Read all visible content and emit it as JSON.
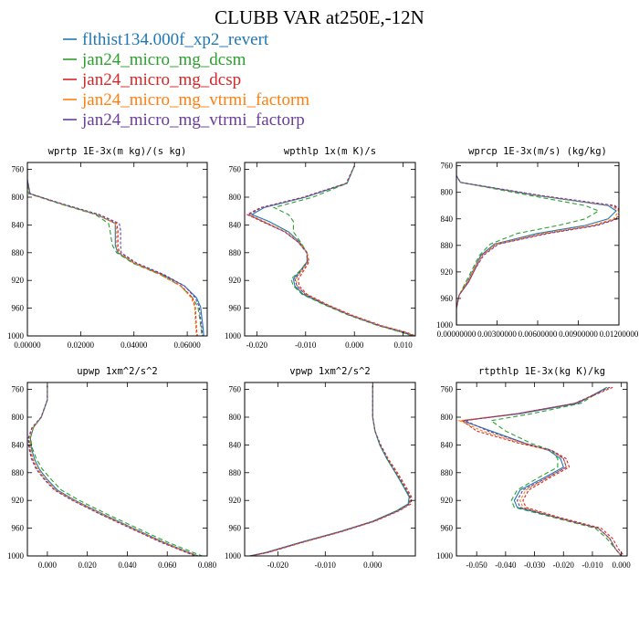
{
  "figure": {
    "title": "CLUBB VAR at250E,-12N"
  },
  "legend": [
    {
      "name": "flthist134.000f_xp2_revert",
      "color": "#1f77b4",
      "dash": ""
    },
    {
      "name": "jan24_micro_mg_dcsm",
      "color": "#2ca02c",
      "dash": "5,3"
    },
    {
      "name": "jan24_micro_mg_dcsp",
      "color": "#d62728",
      "dash": "3,2"
    },
    {
      "name": "jan24_micro_mg_vtrmi_factorm",
      "color": "#ff7f0e",
      "dash": "3,2"
    },
    {
      "name": "jan24_micro_mg_vtrmi_factorp",
      "color": "#6a3d9a",
      "dash": "3,2"
    }
  ],
  "chart_data": [
    {
      "type": "line",
      "title": "wprtp  1E-3x(m kg)/(s kg)",
      "xlim": [
        0.0,
        0.0675
      ],
      "xticks": [
        0.0,
        0.02,
        0.04,
        0.06
      ],
      "xtick_labels": [
        "0.00000",
        "0.02000",
        "0.04000",
        "0.06000"
      ],
      "ylim": [
        1000,
        750
      ],
      "yticks": [
        760,
        800,
        840,
        880,
        920,
        960,
        1000
      ],
      "y": [
        760,
        775,
        795,
        810,
        825,
        838,
        848,
        860,
        870,
        880,
        895,
        912,
        928,
        945,
        958,
        975,
        990,
        1000
      ],
      "series": [
        {
          "values": [
            0.0,
            0.0,
            0.001,
            0.013,
            0.026,
            0.033,
            0.033,
            0.033,
            0.033,
            0.034,
            0.04,
            0.051,
            0.059,
            0.0635,
            0.065,
            0.0655,
            0.066,
            0.0662
          ]
        },
        {
          "values": [
            0.0,
            0.0,
            0.0005,
            0.0125,
            0.0255,
            0.0305,
            0.031,
            0.0315,
            0.032,
            0.0335,
            0.0395,
            0.05,
            0.0575,
            0.062,
            0.064,
            0.0647,
            0.0652,
            0.0655
          ]
        },
        {
          "values": [
            0.0,
            0.0,
            0.001,
            0.0133,
            0.0265,
            0.0335,
            0.034,
            0.034,
            0.034,
            0.0345,
            0.0405,
            0.0505,
            0.0578,
            0.062,
            0.063,
            0.0633,
            0.0635,
            0.0638
          ]
        },
        {
          "values": [
            0.0,
            0.0,
            0.0008,
            0.013,
            0.0262,
            0.033,
            0.0335,
            0.0335,
            0.0335,
            0.0343,
            0.04,
            0.05,
            0.0575,
            0.0615,
            0.0628,
            0.063,
            0.0633,
            0.0635
          ]
        },
        {
          "values": [
            0.0,
            0.0,
            0.001,
            0.0135,
            0.027,
            0.0345,
            0.035,
            0.035,
            0.035,
            0.0352,
            0.041,
            0.0515,
            0.059,
            0.063,
            0.0645,
            0.065,
            0.0655,
            0.0658
          ]
        }
      ]
    },
    {
      "type": "line",
      "title": "wpthlp  1x(m K)/s",
      "xlim": [
        -0.0225,
        0.0125
      ],
      "xticks": [
        -0.02,
        -0.01,
        0.0,
        0.01
      ],
      "xtick_labels": [
        "-0.020",
        "-0.010",
        "0.000",
        "0.010"
      ],
      "ylim": [
        1000,
        750
      ],
      "yticks": [
        760,
        800,
        840,
        880,
        920,
        960,
        1000
      ],
      "y": [
        755,
        780,
        800,
        815,
        825,
        835,
        850,
        865,
        880,
        893,
        905,
        918,
        928,
        940,
        955,
        970,
        985,
        995,
        1000
      ],
      "series": [
        {
          "values": [
            0.0,
            -0.0015,
            -0.01,
            -0.0185,
            -0.021,
            -0.0175,
            -0.0135,
            -0.0112,
            -0.0097,
            -0.0097,
            -0.011,
            -0.0125,
            -0.0122,
            -0.0105,
            -0.006,
            -0.001,
            0.005,
            0.01,
            0.012
          ]
        },
        {
          "values": [
            0.0,
            -0.0015,
            -0.0085,
            -0.0165,
            -0.0135,
            -0.0125,
            -0.0125,
            -0.011,
            -0.0097,
            -0.0097,
            -0.011,
            -0.013,
            -0.0125,
            -0.0107,
            -0.0062,
            -0.0012,
            0.0048,
            0.0098,
            0.0118
          ]
        },
        {
          "values": [
            0.0,
            -0.0017,
            -0.0105,
            -0.0192,
            -0.022,
            -0.019,
            -0.0142,
            -0.0115,
            -0.0097,
            -0.0093,
            -0.0103,
            -0.0115,
            -0.0113,
            -0.0097,
            -0.0055,
            -0.0005,
            0.0055,
            0.0108,
            0.0125
          ]
        },
        {
          "values": [
            0.0,
            -0.0016,
            -0.0102,
            -0.019,
            -0.0215,
            -0.0185,
            -0.014,
            -0.0113,
            -0.0097,
            -0.0095,
            -0.0106,
            -0.012,
            -0.0117,
            -0.01,
            -0.0057,
            -0.0008,
            0.0052,
            0.0105,
            0.0123
          ]
        },
        {
          "values": [
            0.0,
            -0.0016,
            -0.0103,
            -0.019,
            -0.0218,
            -0.0188,
            -0.0143,
            -0.0115,
            -0.0098,
            -0.0096,
            -0.0108,
            -0.0122,
            -0.0118,
            -0.0101,
            -0.0058,
            -0.0009,
            0.0051,
            0.0104,
            0.0122
          ]
        }
      ]
    },
    {
      "type": "line",
      "title": "wprcp  1E-3x(m/s) (kg/kg)",
      "xlim": [
        0.0,
        0.012
      ],
      "xticks": [
        0.0,
        0.003,
        0.006,
        0.009,
        0.012
      ],
      "xtick_labels": [
        "0.00000000",
        "0.00300000",
        "0.00600000",
        "0.00900000",
        "0.01200000"
      ],
      "ylim": [
        1000,
        755
      ],
      "yticks": [
        760,
        800,
        840,
        880,
        920,
        960,
        1000
      ],
      "y": [
        760,
        775,
        785,
        805,
        820,
        828,
        840,
        850,
        862,
        878,
        895,
        915,
        935,
        955,
        975,
        1000
      ],
      "series": [
        {
          "values": [
            0.0,
            0.0,
            0.0003,
            0.006,
            0.0112,
            0.0118,
            0.0112,
            0.0095,
            0.006,
            0.0028,
            0.0018,
            0.0013,
            0.0008,
            0.0002,
            0.0,
            0.0
          ]
        },
        {
          "values": [
            0.0,
            0.0,
            0.0003,
            0.0055,
            0.0095,
            0.0105,
            0.0095,
            0.0075,
            0.0045,
            0.0025,
            0.0017,
            0.0012,
            0.0007,
            0.0002,
            0.0,
            0.0
          ]
        },
        {
          "values": [
            0.0,
            0.0,
            0.0003,
            0.0062,
            0.0116,
            0.0121,
            0.0118,
            0.0102,
            0.0066,
            0.003,
            0.0019,
            0.0014,
            0.0009,
            0.0002,
            0.0,
            0.0
          ]
        },
        {
          "values": [
            0.0,
            0.0,
            0.0003,
            0.0061,
            0.0114,
            0.012,
            0.0116,
            0.01,
            0.0064,
            0.0029,
            0.0019,
            0.0013,
            0.0008,
            0.0002,
            0.0,
            0.0
          ]
        },
        {
          "values": [
            0.0,
            0.0,
            0.0003,
            0.0063,
            0.0117,
            0.0122,
            0.0119,
            0.0104,
            0.0068,
            0.0031,
            0.002,
            0.0014,
            0.0009,
            0.0002,
            0.0,
            0.0
          ]
        }
      ]
    },
    {
      "type": "line",
      "title": "upwp  1xm^2/s^2",
      "xlim": [
        -0.01,
        0.08
      ],
      "xticks": [
        0.0,
        0.02,
        0.04,
        0.06,
        0.08
      ],
      "xtick_labels": [
        "0.000",
        "0.020",
        "0.040",
        "0.060",
        "0.080"
      ],
      "ylim": [
        1000,
        750
      ],
      "yticks": [
        760,
        800,
        840,
        880,
        920,
        960,
        1000
      ],
      "y": [
        755,
        775,
        800,
        815,
        830,
        845,
        860,
        875,
        890,
        905,
        920,
        940,
        960,
        980,
        995,
        1000
      ],
      "series": [
        {
          "values": [
            0.0,
            0.0,
            -0.003,
            -0.007,
            -0.0085,
            -0.008,
            -0.0065,
            -0.004,
            0.0,
            0.005,
            0.014,
            0.028,
            0.043,
            0.058,
            0.071,
            0.0755
          ]
        },
        {
          "values": [
            0.0,
            0.0,
            -0.003,
            -0.007,
            -0.0085,
            -0.0075,
            -0.0055,
            -0.0025,
            0.002,
            0.007,
            0.016,
            0.03,
            0.045,
            0.06,
            0.073,
            0.0775
          ]
        },
        {
          "values": [
            0.0,
            0.0,
            -0.003,
            -0.0075,
            -0.0092,
            -0.0088,
            -0.0075,
            -0.005,
            -0.001,
            0.004,
            0.013,
            0.027,
            0.042,
            0.057,
            0.07,
            0.0745
          ]
        },
        {
          "values": [
            0.0,
            0.0,
            -0.003,
            -0.0072,
            -0.009,
            -0.0085,
            -0.0072,
            -0.0048,
            -0.0008,
            0.0042,
            0.0135,
            0.0275,
            0.0425,
            0.0575,
            0.0705,
            0.075
          ]
        },
        {
          "values": [
            0.0,
            0.0,
            -0.0032,
            -0.0077,
            -0.0095,
            -0.0092,
            -0.008,
            -0.0056,
            -0.0015,
            0.0035,
            0.0125,
            0.0265,
            0.0415,
            0.0565,
            0.0695,
            0.074
          ]
        }
      ]
    },
    {
      "type": "line",
      "title": "vpwp  1xm^2/s^2",
      "xlim": [
        -0.027,
        0.009
      ],
      "xticks": [
        -0.02,
        -0.01,
        0.0
      ],
      "xtick_labels": [
        "-0.020",
        "-0.010",
        "0.000"
      ],
      "ylim": [
        1000,
        750
      ],
      "yticks": [
        760,
        800,
        840,
        880,
        920,
        960,
        1000
      ],
      "y": [
        755,
        780,
        800,
        820,
        840,
        860,
        880,
        900,
        915,
        925,
        935,
        950,
        965,
        980,
        995,
        1000
      ],
      "series": [
        {
          "values": [
            0.0,
            0.0,
            0.0,
            0.0005,
            0.0015,
            0.003,
            0.0048,
            0.0065,
            0.0077,
            0.0075,
            0.005,
            0.0,
            -0.007,
            -0.015,
            -0.0225,
            -0.026
          ]
        },
        {
          "values": [
            0.0,
            0.0,
            0.0,
            0.0005,
            0.0015,
            0.003,
            0.0048,
            0.0066,
            0.0078,
            0.0076,
            0.0051,
            0.0001,
            -0.0069,
            -0.0149,
            -0.0224,
            -0.0259
          ]
        },
        {
          "values": [
            0.0,
            0.0,
            0.0,
            0.0005,
            0.0017,
            0.0033,
            0.0052,
            0.007,
            0.0082,
            0.0081,
            0.0056,
            0.0005,
            -0.0065,
            -0.0145,
            -0.022,
            -0.0255
          ]
        },
        {
          "values": [
            0.0,
            0.0,
            0.0,
            0.0005,
            0.0016,
            0.0032,
            0.005,
            0.0068,
            0.008,
            0.0079,
            0.0054,
            0.0003,
            -0.0067,
            -0.0147,
            -0.0222,
            -0.0257
          ]
        },
        {
          "values": [
            0.0,
            0.0,
            0.0,
            0.0005,
            0.0016,
            0.0031,
            0.0049,
            0.0067,
            0.0079,
            0.0078,
            0.0053,
            0.0002,
            -0.0068,
            -0.0148,
            -0.0223,
            -0.0258
          ]
        }
      ]
    },
    {
      "type": "line",
      "title": "rtpthlp  1E-3x(kg K)/kg",
      "xlim": [
        -0.057,
        0.002
      ],
      "xticks": [
        -0.05,
        -0.04,
        -0.03,
        -0.02,
        -0.01,
        0.0
      ],
      "xtick_labels": [
        "-0.050",
        "-0.040",
        "-0.030",
        "-0.020",
        "-0.010",
        "0.000"
      ],
      "ylim": [
        1000,
        750
      ],
      "yticks": [
        760,
        800,
        840,
        880,
        920,
        960,
        1000
      ],
      "y": [
        757,
        780,
        795,
        805,
        820,
        838,
        848,
        860,
        872,
        888,
        905,
        920,
        930,
        945,
        960,
        975,
        990,
        1000
      ],
      "series": [
        {
          "values": [
            -0.005,
            -0.015,
            -0.035,
            -0.055,
            -0.045,
            -0.033,
            -0.025,
            -0.021,
            -0.02,
            -0.027,
            -0.035,
            -0.037,
            -0.036,
            -0.022,
            -0.008,
            -0.004,
            -0.002,
            0.0
          ]
        },
        {
          "values": [
            -0.005,
            -0.014,
            -0.031,
            -0.045,
            -0.04,
            -0.031,
            -0.024,
            -0.022,
            -0.022,
            -0.029,
            -0.036,
            -0.038,
            -0.037,
            -0.023,
            -0.009,
            -0.005,
            -0.002,
            0.0
          ]
        },
        {
          "values": [
            -0.003,
            -0.016,
            -0.036,
            -0.055,
            -0.05,
            -0.035,
            -0.024,
            -0.019,
            -0.018,
            -0.025,
            -0.032,
            -0.034,
            -0.033,
            -0.021,
            -0.007,
            -0.003,
            -0.001,
            0.001
          ]
        },
        {
          "values": [
            -0.004,
            -0.016,
            -0.036,
            -0.056,
            -0.048,
            -0.034,
            -0.024,
            -0.02,
            -0.019,
            -0.026,
            -0.033,
            -0.035,
            -0.034,
            -0.022,
            -0.008,
            -0.004,
            -0.002,
            0.0
          ]
        },
        {
          "values": [
            -0.004,
            -0.016,
            -0.036,
            -0.054,
            -0.046,
            -0.033,
            -0.024,
            -0.02,
            -0.019,
            -0.026,
            -0.034,
            -0.036,
            -0.035,
            -0.022,
            -0.008,
            -0.004,
            -0.002,
            0.0
          ]
        }
      ]
    }
  ]
}
